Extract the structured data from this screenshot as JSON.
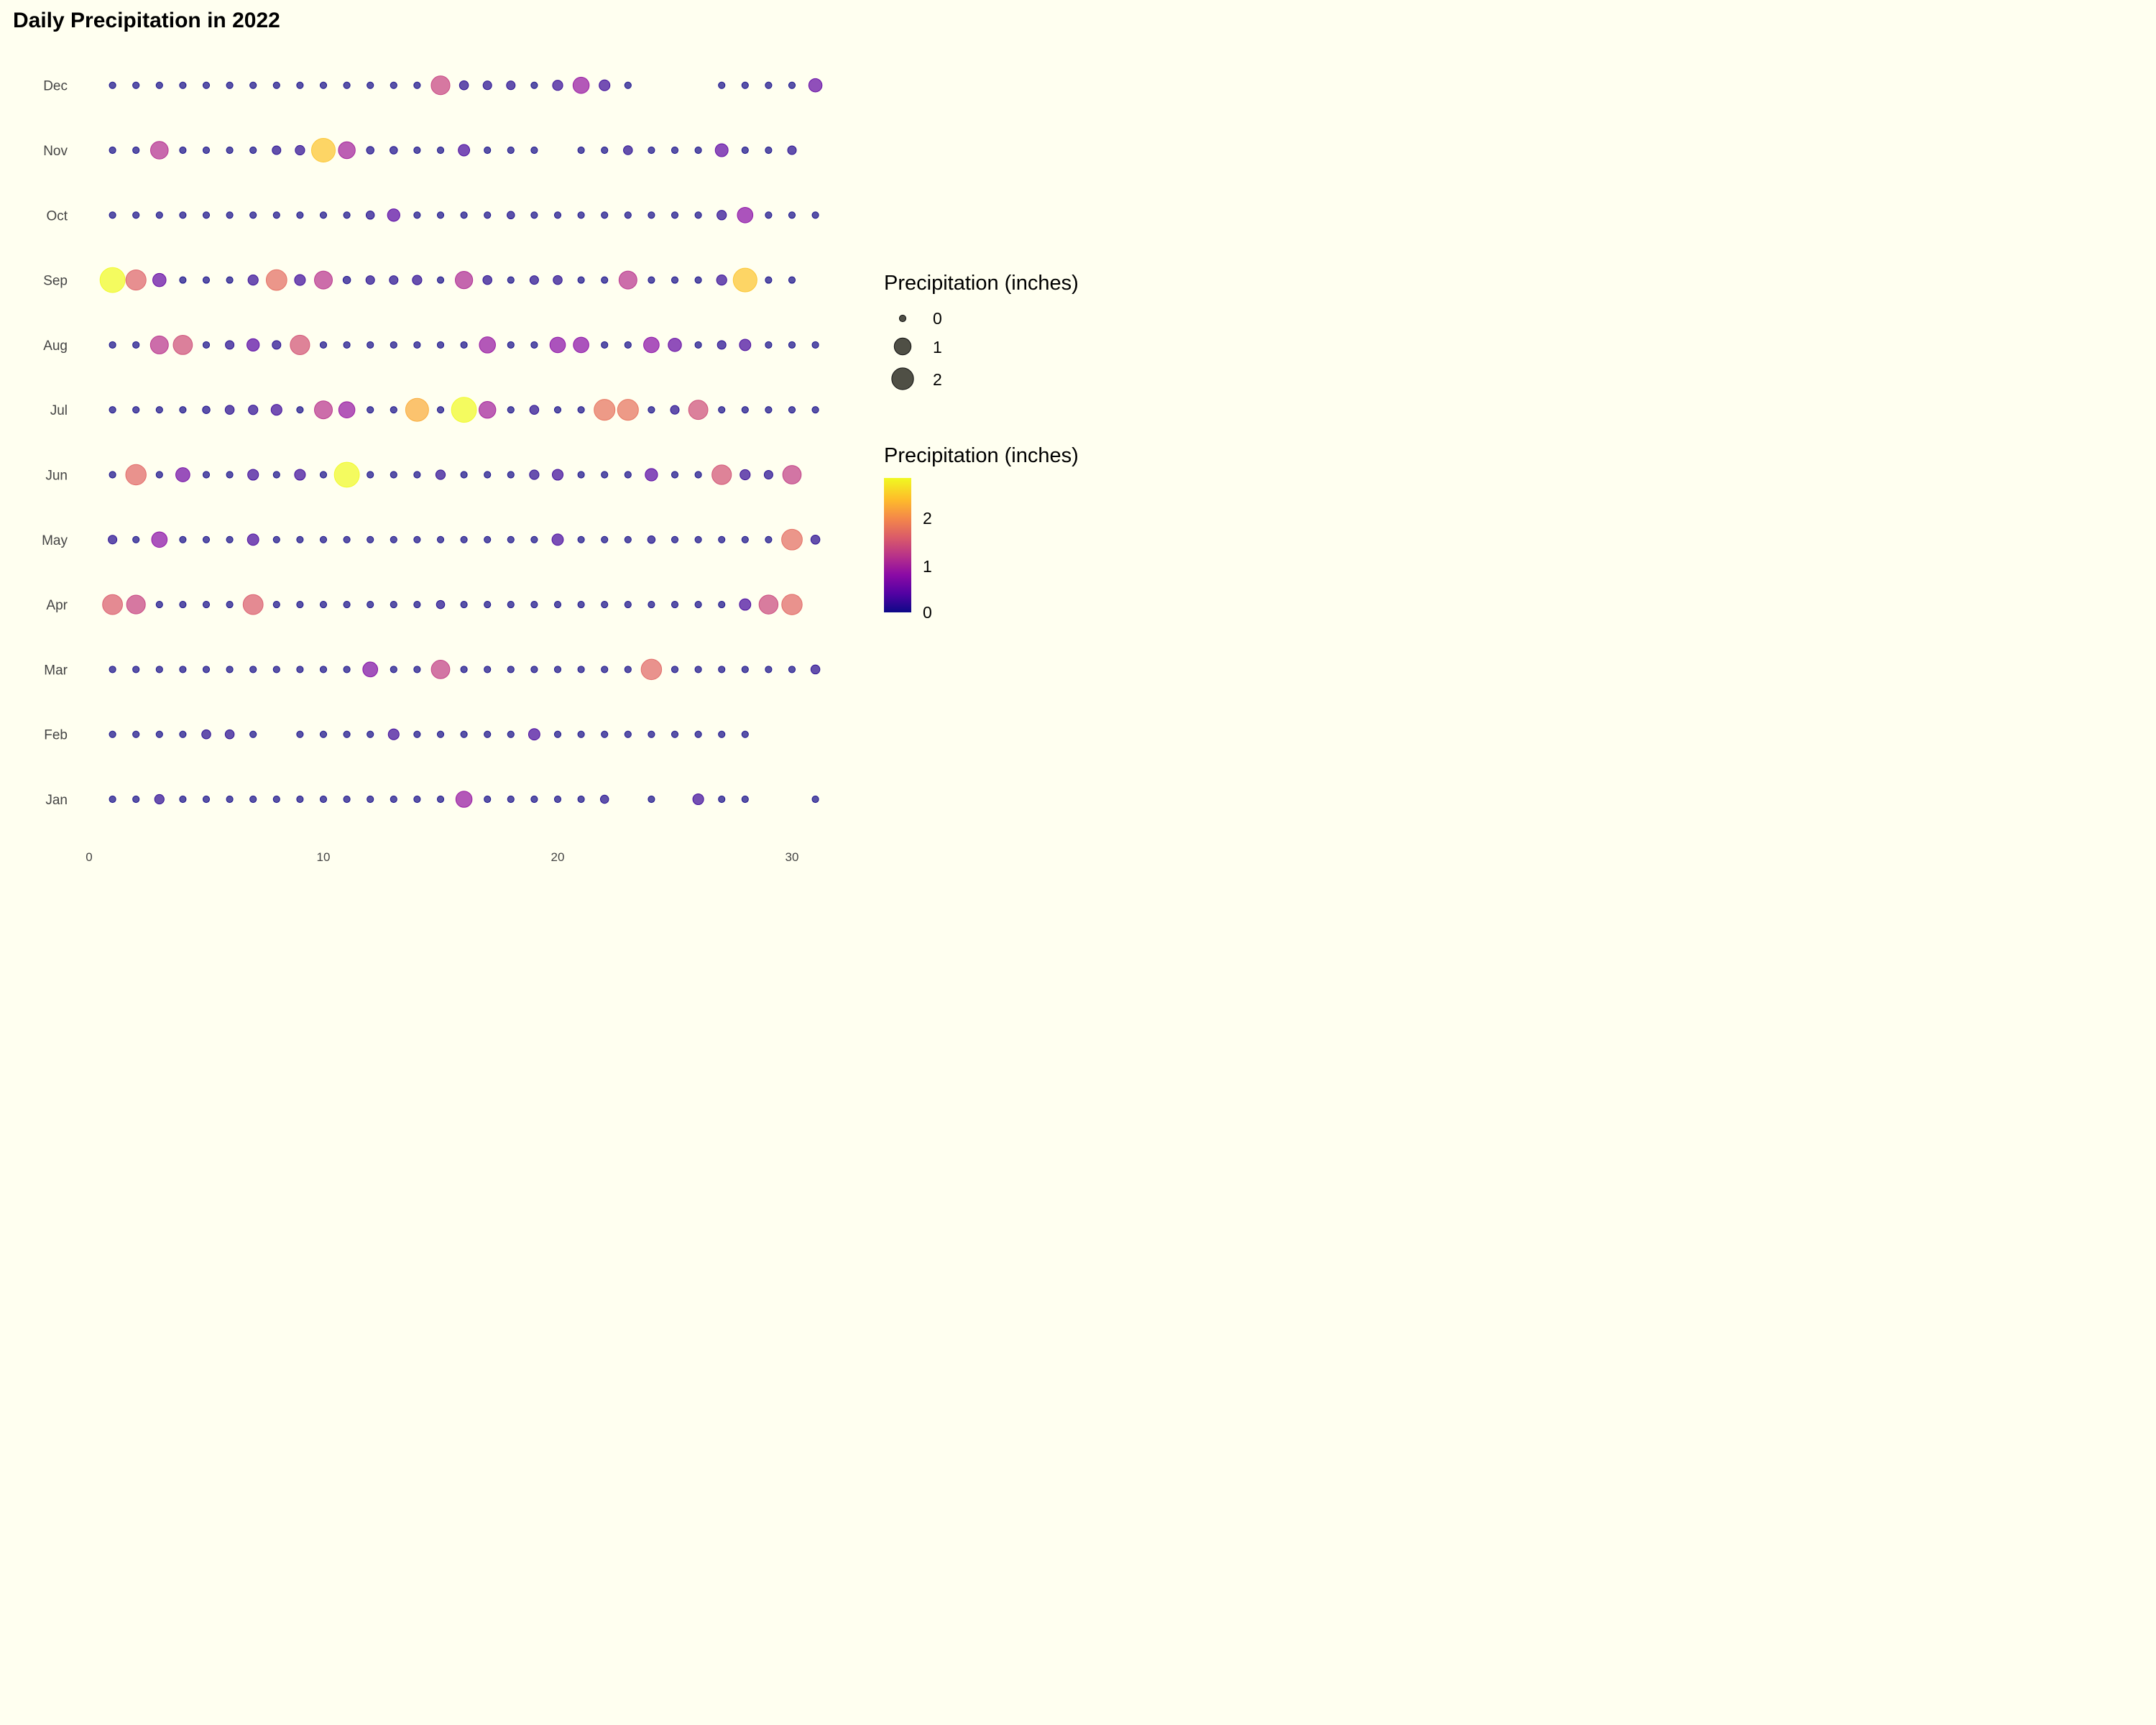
{
  "title": "Daily Precipitation in 2022",
  "legend": {
    "size_title": "Precipitation (inches)",
    "size_levels": [
      0,
      1,
      2
    ],
    "color_title": "Precipitation (inches)",
    "color_ticks": [
      0,
      1,
      2
    ],
    "color_max": 2.85
  },
  "colors": {
    "background": "#FFFFF0",
    "palette": "plasma",
    "legend_point": "#3c3c32"
  },
  "chart_data": {
    "type": "scatter",
    "title": "Daily Precipitation in 2022",
    "x_ticks": [
      0,
      10,
      20,
      30
    ],
    "xlim": [
      0,
      31.5
    ],
    "y_categories": [
      "Jan",
      "Feb",
      "Mar",
      "Apr",
      "May",
      "Jun",
      "Jul",
      "Aug",
      "Sep",
      "Oct",
      "Nov",
      "Dec"
    ],
    "grid": false,
    "legend_position": "right",
    "series": [
      {
        "month": "Jan",
        "days": [
          1,
          2,
          3,
          4,
          5,
          6,
          7,
          8,
          9,
          10,
          11,
          12,
          13,
          14,
          15,
          16,
          17,
          18,
          19,
          20,
          21,
          22,
          24,
          26,
          27,
          28,
          31
        ],
        "values": [
          0.02,
          0.02,
          0.15,
          0.02,
          0.02,
          0.02,
          0.02,
          0.02,
          0.02,
          0.02,
          0.02,
          0.02,
          0.02,
          0.02,
          0.02,
          0.9,
          0.02,
          0.02,
          0.02,
          0.02,
          0.02,
          0.08,
          0.02,
          0.25,
          0.02,
          0.02,
          0.02
        ]
      },
      {
        "month": "Feb",
        "days": [
          1,
          2,
          3,
          4,
          5,
          6,
          7,
          9,
          10,
          11,
          12,
          13,
          14,
          15,
          16,
          17,
          18,
          19,
          20,
          21,
          22,
          23,
          24,
          25,
          26,
          27,
          28
        ],
        "values": [
          0.02,
          0.02,
          0.02,
          0.02,
          0.12,
          0.12,
          0.02,
          0.02,
          0.02,
          0.02,
          0.02,
          0.25,
          0.02,
          0.02,
          0.02,
          0.02,
          0.02,
          0.3,
          0.02,
          0.02,
          0.02,
          0.02,
          0.02,
          0.02,
          0.02,
          0.02,
          0.02
        ]
      },
      {
        "month": "Mar",
        "days": [
          1,
          2,
          3,
          4,
          5,
          6,
          7,
          8,
          9,
          10,
          11,
          12,
          13,
          14,
          15,
          16,
          17,
          18,
          19,
          20,
          21,
          22,
          23,
          24,
          25,
          26,
          27,
          28,
          29,
          30,
          31
        ],
        "values": [
          0.02,
          0.02,
          0.02,
          0.02,
          0.02,
          0.02,
          0.02,
          0.02,
          0.02,
          0.02,
          0.02,
          0.7,
          0.02,
          0.02,
          1.3,
          0.02,
          0.02,
          0.02,
          0.02,
          0.02,
          0.02,
          0.02,
          0.02,
          1.7,
          0.02,
          0.02,
          0.02,
          0.02,
          0.02,
          0.02,
          0.12
        ]
      },
      {
        "month": "Apr",
        "days": [
          1,
          2,
          3,
          4,
          5,
          6,
          7,
          8,
          9,
          10,
          11,
          12,
          13,
          14,
          15,
          16,
          17,
          18,
          19,
          20,
          21,
          22,
          23,
          24,
          25,
          26,
          27,
          28,
          29,
          30
        ],
        "values": [
          1.6,
          1.35,
          0.02,
          0.02,
          0.02,
          0.02,
          1.6,
          0.02,
          0.02,
          0.02,
          0.02,
          0.02,
          0.02,
          0.02,
          0.08,
          0.02,
          0.02,
          0.02,
          0.02,
          0.02,
          0.02,
          0.02,
          0.02,
          0.02,
          0.02,
          0.02,
          0.02,
          0.3,
          1.4,
          1.7
        ]
      },
      {
        "month": "May",
        "days": [
          1,
          2,
          3,
          4,
          5,
          6,
          7,
          8,
          9,
          10,
          11,
          12,
          13,
          14,
          15,
          16,
          17,
          18,
          19,
          20,
          21,
          22,
          23,
          24,
          25,
          26,
          27,
          28,
          29,
          30,
          31
        ],
        "values": [
          0.1,
          0.02,
          0.8,
          0.02,
          0.02,
          0.02,
          0.3,
          0.02,
          0.02,
          0.02,
          0.02,
          0.02,
          0.02,
          0.02,
          0.02,
          0.02,
          0.02,
          0.02,
          0.02,
          0.3,
          0.02,
          0.02,
          0.02,
          0.05,
          0.02,
          0.02,
          0.02,
          0.02,
          0.02,
          1.75,
          0.12
        ]
      },
      {
        "month": "Jun",
        "days": [
          1,
          2,
          3,
          4,
          5,
          6,
          7,
          8,
          9,
          10,
          11,
          12,
          13,
          14,
          15,
          16,
          17,
          18,
          19,
          20,
          21,
          22,
          23,
          24,
          25,
          26,
          27,
          28,
          29,
          30
        ],
        "values": [
          0.02,
          1.7,
          0.02,
          0.6,
          0.02,
          0.02,
          0.25,
          0.02,
          0.25,
          0.02,
          2.85,
          0.02,
          0.02,
          0.02,
          0.15,
          0.02,
          0.02,
          0.02,
          0.15,
          0.25,
          0.02,
          0.02,
          0.02,
          0.4,
          0.02,
          0.02,
          1.5,
          0.2,
          0.1,
          1.3
        ]
      },
      {
        "month": "Jul",
        "days": [
          1,
          2,
          3,
          4,
          5,
          6,
          7,
          8,
          9,
          10,
          11,
          12,
          13,
          14,
          15,
          16,
          17,
          18,
          19,
          20,
          21,
          22,
          23,
          24,
          25,
          26,
          27,
          28,
          29,
          30,
          31
        ],
        "values": [
          0.02,
          0.02,
          0.02,
          0.02,
          0.05,
          0.12,
          0.15,
          0.25,
          0.02,
          1.2,
          0.9,
          0.02,
          0.02,
          2.3,
          0.02,
          2.85,
          1.0,
          0.02,
          0.12,
          0.02,
          0.02,
          1.8,
          1.8,
          0.02,
          0.1,
          1.45,
          0.02,
          0.02,
          0.02,
          0.02,
          0.02
        ]
      },
      {
        "month": "Aug",
        "days": [
          1,
          2,
          3,
          4,
          5,
          6,
          7,
          8,
          9,
          10,
          11,
          12,
          13,
          14,
          15,
          16,
          17,
          18,
          19,
          20,
          21,
          22,
          23,
          24,
          25,
          26,
          27,
          28,
          29,
          30,
          31
        ],
        "values": [
          0.02,
          0.02,
          1.2,
          1.45,
          0.02,
          0.1,
          0.4,
          0.1,
          1.5,
          0.02,
          0.02,
          0.02,
          0.02,
          0.02,
          0.02,
          0.02,
          0.9,
          0.02,
          0.02,
          0.8,
          0.8,
          0.02,
          0.02,
          0.8,
          0.5,
          0.02,
          0.1,
          0.3,
          0.02,
          0.02,
          0.02
        ]
      },
      {
        "month": "Sep",
        "days": [
          1,
          2,
          3,
          4,
          5,
          6,
          7,
          8,
          9,
          10,
          11,
          12,
          13,
          14,
          15,
          16,
          17,
          18,
          19,
          20,
          21,
          22,
          23,
          24,
          25,
          26,
          27,
          28,
          29,
          30
        ],
        "values": [
          2.85,
          1.65,
          0.5,
          0.02,
          0.02,
          0.02,
          0.2,
          1.75,
          0.25,
          1.2,
          0.05,
          0.1,
          0.1,
          0.15,
          0.02,
          1.1,
          0.12,
          0.02,
          0.1,
          0.12,
          0.02,
          0.02,
          1.2,
          0.02,
          0.02,
          0.02,
          0.2,
          2.5,
          0.02,
          0.02
        ]
      },
      {
        "month": "Oct",
        "days": [
          1,
          2,
          3,
          4,
          5,
          6,
          7,
          8,
          9,
          10,
          11,
          12,
          13,
          14,
          15,
          16,
          17,
          18,
          19,
          20,
          21,
          22,
          23,
          24,
          25,
          26,
          27,
          28,
          29,
          30,
          31
        ],
        "values": [
          0.02,
          0.02,
          0.02,
          0.02,
          0.02,
          0.02,
          0.02,
          0.02,
          0.02,
          0.02,
          0.02,
          0.08,
          0.4,
          0.02,
          0.02,
          0.02,
          0.02,
          0.05,
          0.02,
          0.02,
          0.02,
          0.02,
          0.02,
          0.02,
          0.02,
          0.02,
          0.15,
          0.8,
          0.02,
          0.02,
          0.02
        ]
      },
      {
        "month": "Nov",
        "days": [
          1,
          2,
          3,
          4,
          5,
          6,
          7,
          8,
          9,
          10,
          11,
          12,
          13,
          14,
          15,
          16,
          17,
          18,
          19,
          21,
          22,
          23,
          24,
          25,
          26,
          27,
          28,
          29,
          30
        ],
        "values": [
          0.02,
          0.02,
          1.15,
          0.02,
          0.02,
          0.02,
          0.02,
          0.1,
          0.15,
          2.5,
          1.0,
          0.05,
          0.05,
          0.02,
          0.02,
          0.3,
          0.02,
          0.02,
          0.02,
          0.02,
          0.02,
          0.12,
          0.02,
          0.02,
          0.02,
          0.45,
          0.02,
          0.02,
          0.1
        ]
      },
      {
        "month": "Dec",
        "days": [
          1,
          2,
          3,
          4,
          5,
          6,
          7,
          8,
          9,
          10,
          11,
          12,
          13,
          14,
          15,
          16,
          17,
          18,
          19,
          20,
          21,
          22,
          23,
          27,
          28,
          29,
          30,
          31
        ],
        "values": [
          0.02,
          0.02,
          0.02,
          0.02,
          0.02,
          0.02,
          0.02,
          0.02,
          0.02,
          0.02,
          0.02,
          0.02,
          0.02,
          0.02,
          1.35,
          0.12,
          0.1,
          0.1,
          0.02,
          0.2,
          0.9,
          0.25,
          0.02,
          0.02,
          0.02,
          0.02,
          0.02,
          0.5
        ]
      }
    ]
  }
}
